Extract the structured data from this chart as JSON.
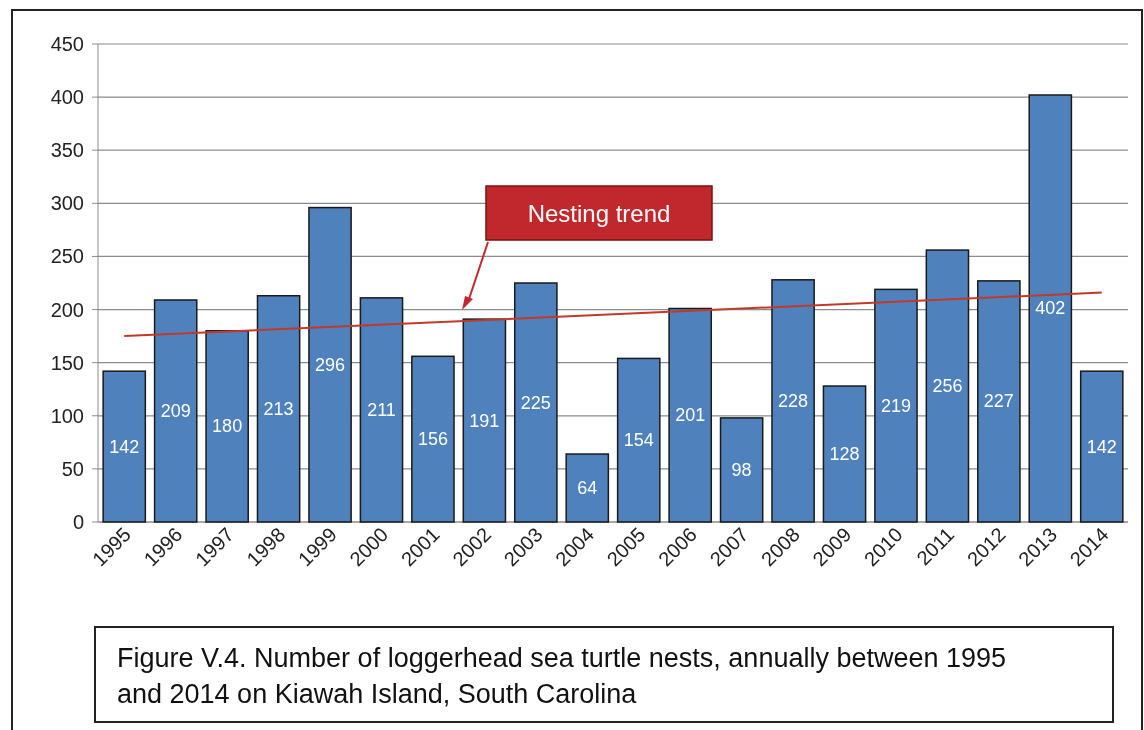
{
  "chart_data": {
    "type": "bar",
    "categories": [
      "1995",
      "1996",
      "1997",
      "1998",
      "1999",
      "2000",
      "2001",
      "2002",
      "2003",
      "2004",
      "2005",
      "2006",
      "2007",
      "2008",
      "2009",
      "2010",
      "2011",
      "2012",
      "2013",
      "2014"
    ],
    "series": [
      {
        "color": "#4f81bd",
        "values": [
          142,
          209,
          180,
          213,
          296,
          211,
          156,
          191,
          225,
          64,
          154,
          201,
          98,
          228,
          128,
          219,
          256,
          227,
          402,
          142
        ],
        "value_labels": [
          "142",
          "209",
          "180",
          "213",
          "296",
          "211",
          "156",
          "191",
          "225",
          "64",
          "154",
          "201",
          "98",
          "228",
          "128",
          "219",
          "256",
          "227",
          "402",
          "142"
        ]
      },
      {
        "type": "line",
        "color": "#c0392b",
        "values": [
          175,
          null,
          null,
          null,
          null,
          null,
          null,
          null,
          null,
          null,
          null,
          null,
          null,
          null,
          null,
          null,
          null,
          null,
          null,
          216
        ]
      }
    ],
    "ylim": [
      0,
      450
    ],
    "yticks": [
      0,
      50,
      100,
      150,
      200,
      250,
      300,
      350,
      400,
      450
    ],
    "grid": "y",
    "annotations": [
      "Nesting trend",
      "Figure V.4.  Number of loggerhead sea turtle nests, annually between 1995 and 2014 on Kiawah Island, South Carolina"
    ]
  }
}
